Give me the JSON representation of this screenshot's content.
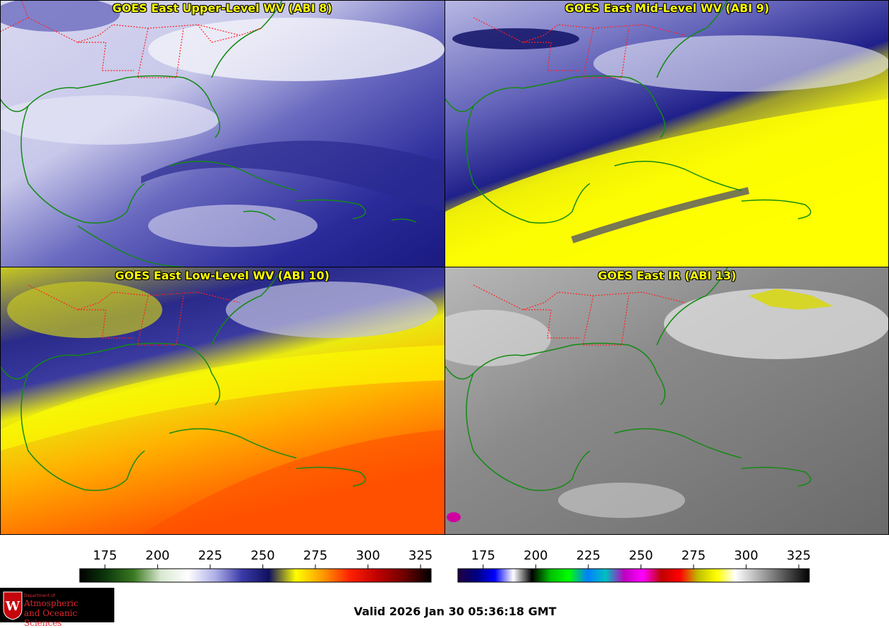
{
  "panels": [
    {
      "id": "p1",
      "title": "GOES East Upper-Level WV (ABI 8)"
    },
    {
      "id": "p2",
      "title": "GOES East Mid-Level WV (ABI 9)"
    },
    {
      "id": "p3",
      "title": "GOES East Low-Level WV (ABI 10)"
    },
    {
      "id": "p4",
      "title": "GOES East IR (ABI 13)"
    }
  ],
  "wv_colorbar": {
    "ticks": [
      "175",
      "200",
      "225",
      "250",
      "275",
      "300",
      "325"
    ],
    "min": 163,
    "max": 330,
    "tick_values": [
      175,
      200,
      225,
      250,
      275,
      300,
      325
    ],
    "colors": [
      "#000000",
      "#0d3a0d",
      "#3a7a20",
      "#d8e8d0",
      "#ffffff",
      "#b0b0e8",
      "#3a3aa8",
      "#101060",
      "#ffff00",
      "#ff9900",
      "#ff2000",
      "#c00000",
      "#700000",
      "#000000"
    ]
  },
  "ir_colorbar": {
    "ticks": [
      "175",
      "200",
      "225",
      "250",
      "275",
      "300",
      "325"
    ],
    "min": 163,
    "max": 330,
    "tick_values": [
      175,
      200,
      225,
      250,
      275,
      300,
      325
    ],
    "colors": [
      "#200040",
      "#000080",
      "#0000ff",
      "#ffffff",
      "#000000",
      "#00c000",
      "#00ff00",
      "#0080ff",
      "#00c0c0",
      "#c000c0",
      "#ff00ff",
      "#c00000",
      "#ff0000",
      "#c0c000",
      "#ffff00",
      "#ffffff",
      "#c0c0c0",
      "#808080",
      "#404040",
      "#000000"
    ]
  },
  "logo": {
    "dept": "Department of",
    "line1": "Atmospheric",
    "line2": "and Oceanic Sciences"
  },
  "valid_time": "Valid 2026 Jan 30 05:36:18 GMT",
  "colors": {
    "title_text": "#ffff00",
    "coastline": "#138a13",
    "state_border": "#ff2020"
  }
}
